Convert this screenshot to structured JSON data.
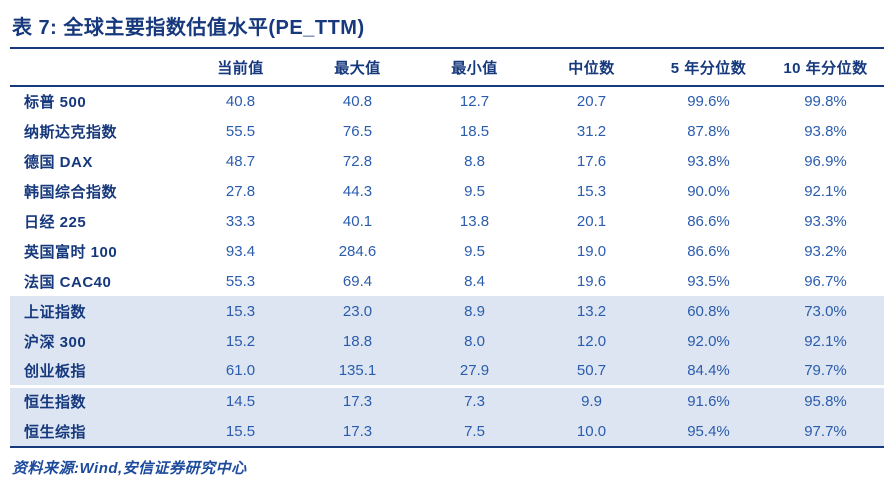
{
  "page": {
    "title": "表 7: 全球主要指数估值水平(PE_TTM)",
    "source_note": "资料来源:Wind,安信证券研究中心"
  },
  "table": {
    "columns": [
      "当前值",
      "最大值",
      "最小值",
      "中位数",
      "5 年分位数",
      "10 年分位数"
    ],
    "rows": [
      {
        "label": "标普 500",
        "shaded": false,
        "separator_above": false,
        "values": [
          "40.8",
          "40.8",
          "12.7",
          "20.7",
          "99.6%",
          "99.8%"
        ]
      },
      {
        "label": "纳斯达克指数",
        "shaded": false,
        "separator_above": false,
        "values": [
          "55.5",
          "76.5",
          "18.5",
          "31.2",
          "87.8%",
          "93.8%"
        ]
      },
      {
        "label": "德国 DAX",
        "shaded": false,
        "separator_above": false,
        "values": [
          "48.7",
          "72.8",
          "8.8",
          "17.6",
          "93.8%",
          "96.9%"
        ]
      },
      {
        "label": "韩国综合指数",
        "shaded": false,
        "separator_above": false,
        "values": [
          "27.8",
          "44.3",
          "9.5",
          "15.3",
          "90.0%",
          "92.1%"
        ]
      },
      {
        "label": "日经 225",
        "shaded": false,
        "separator_above": false,
        "values": [
          "33.3",
          "40.1",
          "13.8",
          "20.1",
          "86.6%",
          "93.3%"
        ]
      },
      {
        "label": "英国富时 100",
        "shaded": false,
        "separator_above": false,
        "values": [
          "93.4",
          "284.6",
          "9.5",
          "19.0",
          "86.6%",
          "93.2%"
        ]
      },
      {
        "label": "法国 CAC40",
        "shaded": false,
        "separator_above": false,
        "values": [
          "55.3",
          "69.4",
          "8.4",
          "19.6",
          "93.5%",
          "96.7%"
        ]
      },
      {
        "label": "上证指数",
        "shaded": true,
        "separator_above": false,
        "values": [
          "15.3",
          "23.0",
          "8.9",
          "13.2",
          "60.8%",
          "73.0%"
        ]
      },
      {
        "label": "沪深 300",
        "shaded": true,
        "separator_above": false,
        "values": [
          "15.2",
          "18.8",
          "8.0",
          "12.0",
          "92.0%",
          "92.1%"
        ]
      },
      {
        "label": "创业板指",
        "shaded": true,
        "separator_above": false,
        "values": [
          "61.0",
          "135.1",
          "27.9",
          "50.7",
          "84.4%",
          "79.7%"
        ]
      },
      {
        "label": "恒生指数",
        "shaded": true,
        "separator_above": true,
        "values": [
          "14.5",
          "17.3",
          "7.3",
          "9.9",
          "91.6%",
          "95.8%"
        ]
      },
      {
        "label": "恒生综指",
        "shaded": true,
        "separator_above": false,
        "values": [
          "15.5",
          "17.3",
          "7.5",
          "10.0",
          "95.4%",
          "97.7%"
        ]
      }
    ]
  },
  "colors": {
    "navy": "#16387c",
    "value_blue": "#2b5cad",
    "shaded_row_bg": "#dce5f1",
    "background": "#ffffff"
  }
}
